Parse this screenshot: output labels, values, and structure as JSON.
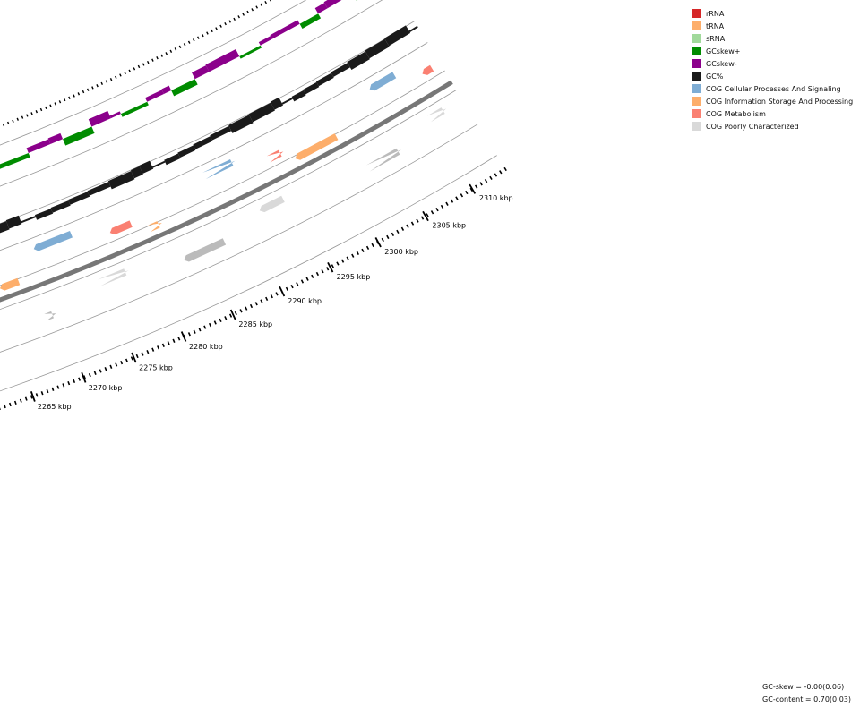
{
  "legend": [
    {
      "label": "rRNA",
      "color": "#d62728"
    },
    {
      "label": "tRNA",
      "color": "#fdae6b"
    },
    {
      "label": "sRNA",
      "color": "#a1d99b"
    },
    {
      "label": "GCskew+",
      "color": "#008c00"
    },
    {
      "label": "GCskew-",
      "color": "#8b008b"
    },
    {
      "label": "GC%",
      "color": "#1a1a1a"
    },
    {
      "label": "COG Cellular Processes And Signaling",
      "color": "#7fadd4"
    },
    {
      "label": "COG Information Storage And Processing",
      "color": "#fdae6b"
    },
    {
      "label": "COG Metabolism",
      "color": "#fa8072"
    },
    {
      "label": "COG Poorly Characterized",
      "color": "#d9d9d9"
    }
  ],
  "ticks": [
    {
      "label": "2310 kbp"
    },
    {
      "label": "2305 kbp"
    },
    {
      "label": "2300 kbp"
    },
    {
      "label": "2295 kbp"
    },
    {
      "label": "2290 kbp"
    },
    {
      "label": "2285 kbp"
    },
    {
      "label": "2280 kbp"
    },
    {
      "label": "2275 kbp"
    },
    {
      "label": "2270 kbp"
    },
    {
      "label": "2265 kbp"
    }
  ],
  "stats": {
    "gc_skew": "GC-skew = -0.00(0.06)",
    "gc_content": "GC-content = 0.70(0.03)"
  },
  "colors": {
    "backbone": "#777777",
    "guide": "#999999",
    "cog_cellular": "#7fadd4",
    "cog_info": "#fdae6b",
    "cog_metabolism": "#fa8072",
    "cog_poor": "#d9d9d9",
    "small_feature": "#bbbbbb"
  }
}
